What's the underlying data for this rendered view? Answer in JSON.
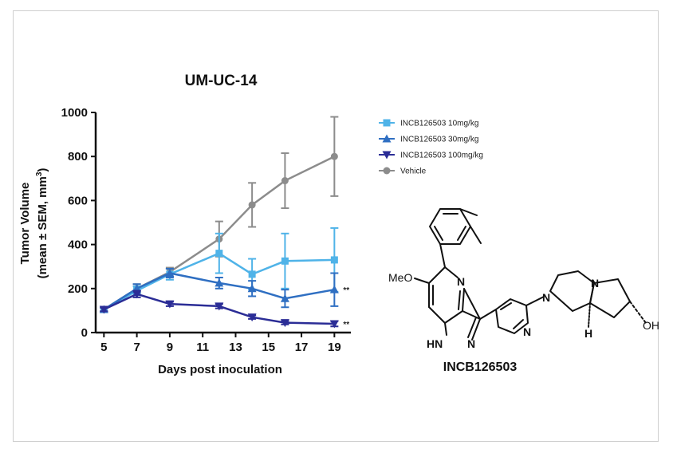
{
  "chart_data": {
    "type": "line",
    "title": "UM-UC-14",
    "xlabel": "Days post inoculation",
    "ylabel_line1": "Tumor Volume",
    "ylabel_line2": "(mean ± SEM, mm",
    "ylabel_sup": "3",
    "ylabel_close": ")",
    "xlim": [
      4.5,
      20
    ],
    "ylim": [
      0,
      1000
    ],
    "x_ticks": [
      5,
      7,
      9,
      11,
      13,
      15,
      17,
      19
    ],
    "y_ticks": [
      0,
      200,
      400,
      600,
      800,
      1000
    ],
    "legend_position": "top-right",
    "significance_label": "**",
    "series": [
      {
        "name": "INCB126503 10mg/kg",
        "color": "#4fb3e8",
        "marker": "square",
        "x": [
          5,
          7,
          9,
          12,
          14,
          16,
          19
        ],
        "y": [
          105,
          190,
          265,
          360,
          265,
          325,
          330
        ],
        "err": [
          10,
          20,
          25,
          90,
          70,
          125,
          145
        ]
      },
      {
        "name": "INCB126503 30mg/kg",
        "color": "#2f6fc2",
        "marker": "triangle-up",
        "x": [
          5,
          7,
          9,
          12,
          14,
          16,
          19
        ],
        "y": [
          105,
          200,
          270,
          225,
          200,
          155,
          195
        ],
        "err": [
          10,
          20,
          20,
          25,
          35,
          40,
          75
        ]
      },
      {
        "name": "INCB126503 100mg/kg",
        "color": "#2b2d96",
        "marker": "triangle-down",
        "x": [
          5,
          7,
          9,
          12,
          14,
          16,
          19
        ],
        "y": [
          105,
          175,
          130,
          120,
          70,
          45,
          40
        ],
        "err": [
          8,
          15,
          10,
          10,
          8,
          8,
          12
        ]
      },
      {
        "name": "Vehicle",
        "color": "#8c8c8c",
        "marker": "circle",
        "x": [
          5,
          7,
          9,
          12,
          14,
          16,
          19
        ],
        "y": [
          105,
          200,
          275,
          425,
          580,
          690,
          800
        ],
        "err": [
          10,
          20,
          20,
          80,
          100,
          125,
          180
        ]
      }
    ],
    "significance_series": [
      1,
      2
    ]
  },
  "compound": {
    "name": "INCB126503",
    "atom_labels": {
      "meo": "MeO",
      "n_pyridine": "N",
      "hn": "HN",
      "n_pyrazole": "N",
      "n_pyridyl": "N",
      "n_piperazine1": "N",
      "n_piperazine2": "N",
      "h": "H",
      "oh": "OH"
    }
  }
}
